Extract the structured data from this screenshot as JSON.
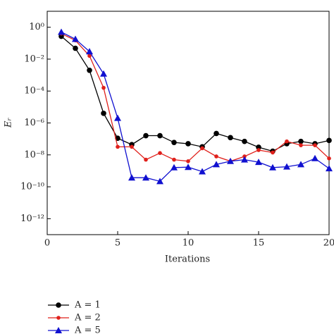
{
  "chart_data": {
    "type": "line",
    "xlabel": "Iterations",
    "ylabel": "Eᵣ",
    "x": [
      1,
      2,
      3,
      4,
      5,
      6,
      7,
      8,
      9,
      10,
      11,
      12,
      13,
      14,
      15,
      16,
      17,
      18,
      19,
      20
    ],
    "xlim": [
      0,
      20
    ],
    "xticks": [
      0,
      5,
      10,
      15,
      20
    ],
    "ylim": [
      1e-13,
      10
    ],
    "log_y": true,
    "yticks": [
      {
        "value": 1,
        "label": "10⁰"
      },
      {
        "value": 0.01,
        "label": "10⁻²"
      },
      {
        "value": 0.0001,
        "label": "10⁻⁴"
      },
      {
        "value": 1e-06,
        "label": "10⁻⁶"
      },
      {
        "value": 1e-08,
        "label": "10⁻⁸"
      },
      {
        "value": 1e-10,
        "label": "10⁻¹⁰"
      },
      {
        "value": 1e-12,
        "label": "10⁻¹²"
      }
    ],
    "series": [
      {
        "name": "A = 1",
        "color": "#000000",
        "marker": "circle",
        "values": [
          0.27,
          0.048,
          0.002,
          4e-06,
          1.1e-07,
          4.4e-08,
          1.6e-07,
          1.6e-07,
          6e-08,
          5e-08,
          3.2e-08,
          2.2e-07,
          1.2e-07,
          7e-08,
          3e-08,
          1.7e-08,
          5e-08,
          7e-08,
          5e-08,
          8e-08
        ]
      },
      {
        "name": "A = 2",
        "color": "#e0201b",
        "marker": "dot",
        "values": [
          0.4,
          0.15,
          0.016,
          0.00016,
          3.2e-08,
          3.2e-08,
          5e-09,
          1.3e-08,
          5e-09,
          4e-09,
          2.6e-08,
          8e-09,
          4e-09,
          8e-09,
          2e-08,
          1.4e-08,
          7e-08,
          4e-08,
          4e-08,
          6e-09
        ]
      },
      {
        "name": "A = 5",
        "color": "#1010d0",
        "marker": "triangle",
        "values": [
          0.5,
          0.18,
          0.03,
          0.0012,
          2e-06,
          3.7e-10,
          3.7e-10,
          2.2e-10,
          1.6e-09,
          1.7e-09,
          9e-10,
          2.5e-09,
          4e-09,
          5e-09,
          3.5e-09,
          1.6e-09,
          1.8e-09,
          2.5e-09,
          6e-09,
          1.4e-09
        ]
      }
    ]
  }
}
